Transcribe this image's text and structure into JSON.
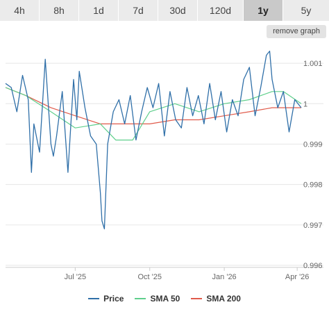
{
  "tabs": [
    {
      "label": "4h"
    },
    {
      "label": "8h"
    },
    {
      "label": "1d"
    },
    {
      "label": "7d"
    },
    {
      "label": "30d"
    },
    {
      "label": "120d"
    },
    {
      "label": "1y"
    },
    {
      "label": "5y"
    }
  ],
  "active_tab": "1y",
  "remove_graph_label": "remove graph",
  "colors": {
    "price": "#2f6fa8",
    "sma50": "#5fcf8c",
    "sma200": "#e05a4a",
    "grid": "#e6e6e6"
  },
  "chart_data": {
    "type": "line",
    "title": "",
    "xlabel": "",
    "ylabel": "",
    "ylim": [
      0.996,
      1.0015
    ],
    "yticks": [
      0.996,
      0.997,
      0.998,
      0.999,
      1,
      1.001
    ],
    "ytick_labels": [
      "0.996",
      "0.997",
      "0.998",
      "0.999",
      "1",
      "1.001"
    ],
    "xticks": [
      "2025-07-01",
      "2025-10-01",
      "2026-01-01",
      "2026-04-01"
    ],
    "xtick_labels": [
      "Jul '25",
      "Oct '25",
      "Jan '26",
      "Apr '26"
    ],
    "xrange": [
      "2025-04-06",
      "2026-04-06"
    ],
    "legend_position": "bottom",
    "series": [
      {
        "name": "Price",
        "color": "#2f6fa8",
        "x": [
          "2025-04-06",
          "2025-04-13",
          "2025-04-20",
          "2025-04-27",
          "2025-05-04",
          "2025-05-08",
          "2025-05-11",
          "2025-05-18",
          "2025-05-25",
          "2025-06-01",
          "2025-06-04",
          "2025-06-08",
          "2025-06-15",
          "2025-06-22",
          "2025-06-29",
          "2025-07-03",
          "2025-07-06",
          "2025-07-13",
          "2025-07-20",
          "2025-07-27",
          "2025-08-01",
          "2025-08-03",
          "2025-08-06",
          "2025-08-10",
          "2025-08-17",
          "2025-08-24",
          "2025-08-31",
          "2025-09-07",
          "2025-09-14",
          "2025-09-21",
          "2025-09-28",
          "2025-10-05",
          "2025-10-12",
          "2025-10-19",
          "2025-10-26",
          "2025-11-02",
          "2025-11-09",
          "2025-11-16",
          "2025-11-23",
          "2025-11-30",
          "2025-12-07",
          "2025-12-14",
          "2025-12-21",
          "2025-12-28",
          "2026-01-04",
          "2026-01-11",
          "2026-01-18",
          "2026-01-25",
          "2026-02-01",
          "2026-02-08",
          "2026-02-15",
          "2026-02-22",
          "2026-02-26",
          "2026-03-01",
          "2026-03-08",
          "2026-03-15",
          "2026-03-22",
          "2026-03-29",
          "2026-04-06"
        ],
        "y": [
          1.0005,
          1.0004,
          0.9998,
          1.0007,
          1.0001,
          0.9983,
          0.9995,
          0.9988,
          1.0011,
          0.999,
          0.9987,
          0.9992,
          1.0003,
          0.9983,
          1.0006,
          0.9996,
          1.0008,
          0.9999,
          0.9992,
          0.999,
          0.9978,
          0.9971,
          0.9969,
          0.999,
          0.9998,
          1.0001,
          0.9995,
          1.0002,
          0.9991,
          0.9998,
          1.0004,
          0.9999,
          1.0005,
          0.9992,
          1.0003,
          0.9996,
          0.9994,
          1.0004,
          0.9997,
          1.0002,
          0.9995,
          1.0005,
          0.9996,
          1.0003,
          0.9993,
          1.0001,
          0.9997,
          1.0006,
          1.0009,
          0.9997,
          1.0004,
          1.0012,
          1.0013,
          1.0006,
          0.9999,
          1.0003,
          0.9993,
          1.0001,
          0.9999
        ]
      },
      {
        "name": "SMA 50",
        "color": "#5fcf8c",
        "x": [
          "2025-04-06",
          "2025-05-01",
          "2025-06-01",
          "2025-07-01",
          "2025-08-01",
          "2025-08-20",
          "2025-09-10",
          "2025-10-01",
          "2025-11-01",
          "2025-12-01",
          "2026-01-01",
          "2026-02-01",
          "2026-03-01",
          "2026-03-15",
          "2026-04-06"
        ],
        "y": [
          1.0004,
          1.0002,
          0.9998,
          0.9994,
          0.9995,
          0.9991,
          0.9991,
          0.9998,
          1.0,
          0.9998,
          1.0,
          1.0001,
          1.0003,
          1.0003,
          1.0
        ]
      },
      {
        "name": "SMA 200",
        "color": "#e05a4a",
        "x": [
          "2025-04-06",
          "2025-05-01",
          "2025-06-01",
          "2025-07-01",
          "2025-08-01",
          "2025-09-01",
          "2025-10-01",
          "2025-11-01",
          "2025-12-01",
          "2026-01-01",
          "2026-02-01",
          "2026-03-01",
          "2026-04-06"
        ],
        "y": [
          1.0004,
          1.0002,
          0.9999,
          0.9997,
          0.9995,
          0.9995,
          0.9995,
          0.9996,
          0.9996,
          0.9997,
          0.9998,
          0.9999,
          0.9999
        ]
      }
    ]
  }
}
